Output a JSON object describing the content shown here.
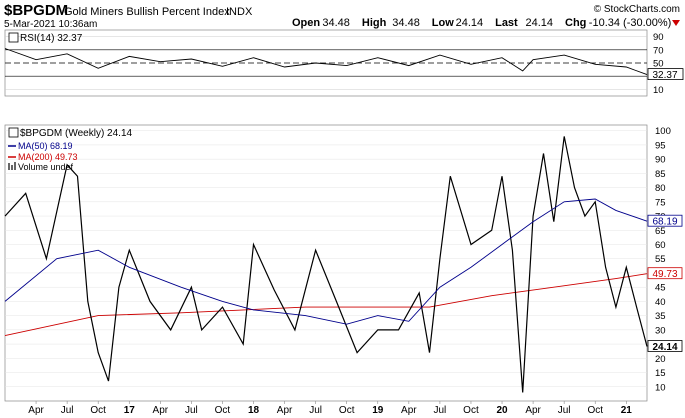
{
  "header": {
    "symbol": "$BPGDM",
    "name": "Gold Miners Bullish Percent Index",
    "exchange": "INDX",
    "date": "5-Mar-2021 10:36am",
    "copyright": "© StockCharts.com",
    "quote": [
      {
        "label": "Open",
        "value": "34.48"
      },
      {
        "label": "High",
        "value": "34.48"
      },
      {
        "label": "Low",
        "value": "24.14"
      },
      {
        "label": "Last",
        "value": "24.14"
      },
      {
        "label": "Chg",
        "value": "-10.34 (-30.00%)"
      }
    ]
  },
  "rsi_panel": {
    "legend": "RSI(14) 32.37",
    "last_label": "32.37",
    "ticks": [
      "90",
      "70",
      "50",
      "30",
      "10"
    ],
    "levels": [
      70,
      50,
      30
    ]
  },
  "price_panel": {
    "legend_main": "$BPGDM (Weekly) 24.14",
    "legend_ma50": "MA(50) 68.19",
    "legend_ma200": "MA(200) 49.73",
    "legend_volume": "Volume undef",
    "ticks": [
      "100",
      "95",
      "90",
      "85",
      "80",
      "75",
      "70",
      "65",
      "60",
      "55",
      "50",
      "45",
      "40",
      "35",
      "30",
      "25",
      "20",
      "15",
      "10"
    ],
    "labels": {
      "last": "24.14",
      "ma50": "68.19",
      "ma200": "49.73"
    },
    "colors": {
      "ma50": "#00008b",
      "ma200": "#cc0000",
      "up": "#000000",
      "down": "#cc0000",
      "last": "#ff8c00"
    }
  },
  "x_axis": {
    "labels": [
      "Apr",
      "Jul",
      "Oct",
      "17",
      "Apr",
      "Jul",
      "Oct",
      "18",
      "Apr",
      "Jul",
      "Oct",
      "19",
      "Apr",
      "Jul",
      "Oct",
      "20",
      "Apr",
      "Jul",
      "Oct",
      "21"
    ],
    "bold": [
      "17",
      "18",
      "19",
      "20",
      "21"
    ]
  },
  "chart_data": [
    {
      "type": "line",
      "title": "RSI(14)",
      "ylim": [
        0,
        100
      ],
      "x_range": [
        "2016-01",
        "2021-03"
      ],
      "series": [
        {
          "name": "RSI(14)",
          "x": [
            "2016-01",
            "2016-04",
            "2016-07",
            "2016-10",
            "2017-01",
            "2017-04",
            "2017-07",
            "2017-10",
            "2018-01",
            "2018-04",
            "2018-07",
            "2018-10",
            "2019-01",
            "2019-04",
            "2019-07",
            "2019-10",
            "2020-01",
            "2020-03",
            "2020-04",
            "2020-07",
            "2020-10",
            "2021-01",
            "2021-03"
          ],
          "y": [
            72,
            55,
            64,
            42,
            60,
            52,
            56,
            45,
            58,
            44,
            50,
            46,
            58,
            46,
            62,
            48,
            58,
            38,
            55,
            62,
            48,
            44,
            32.37
          ]
        }
      ]
    },
    {
      "type": "line",
      "title": "$BPGDM (Weekly)",
      "ylim": [
        5,
        102
      ],
      "x_range": [
        "2016-01",
        "2021-03"
      ],
      "series": [
        {
          "name": "$BPGDM (Weekly)",
          "x": [
            "2016-01",
            "2016-03",
            "2016-05",
            "2016-07",
            "2016-08",
            "2016-09",
            "2016-10",
            "2016-11",
            "2016-12",
            "2017-01",
            "2017-03",
            "2017-05",
            "2017-07",
            "2017-08",
            "2017-10",
            "2017-12",
            "2018-01",
            "2018-03",
            "2018-05",
            "2018-07",
            "2018-09",
            "2018-11",
            "2019-01",
            "2019-03",
            "2019-05",
            "2019-06",
            "2019-07",
            "2019-08",
            "2019-10",
            "2019-12",
            "2020-01",
            "2020-02",
            "2020-03",
            "2020-04",
            "2020-05",
            "2020-06",
            "2020-07",
            "2020-08",
            "2020-09",
            "2020-10",
            "2020-11",
            "2020-12",
            "2021-01",
            "2021-02",
            "2021-03"
          ],
          "y": [
            70,
            78,
            55,
            88,
            84,
            40,
            22,
            12,
            45,
            58,
            40,
            30,
            45,
            30,
            38,
            25,
            60,
            44,
            30,
            58,
            40,
            22,
            30,
            30,
            43,
            22,
            55,
            84,
            60,
            65,
            84,
            58,
            8,
            70,
            92,
            68,
            98,
            80,
            70,
            75,
            52,
            38,
            52,
            38,
            24.14
          ]
        },
        {
          "name": "MA(50)",
          "x": [
            "2016-01",
            "2016-06",
            "2016-10",
            "2017-01",
            "2017-06",
            "2017-10",
            "2018-01",
            "2018-06",
            "2018-10",
            "2019-01",
            "2019-04",
            "2019-07",
            "2019-10",
            "2020-01",
            "2020-04",
            "2020-07",
            "2020-10",
            "2020-12",
            "2021-03"
          ],
          "y": [
            40,
            55,
            58,
            52,
            45,
            40,
            37,
            35,
            32,
            35,
            33,
            45,
            52,
            60,
            68,
            75,
            76,
            72,
            68.19
          ]
        },
        {
          "name": "MA(200)",
          "x": [
            "2016-01",
            "2016-10",
            "2017-06",
            "2018-06",
            "2019-06",
            "2019-12",
            "2020-06",
            "2020-12",
            "2021-03"
          ],
          "y": [
            28,
            35,
            36,
            38,
            38,
            42,
            45,
            48,
            49.73
          ]
        }
      ]
    }
  ]
}
